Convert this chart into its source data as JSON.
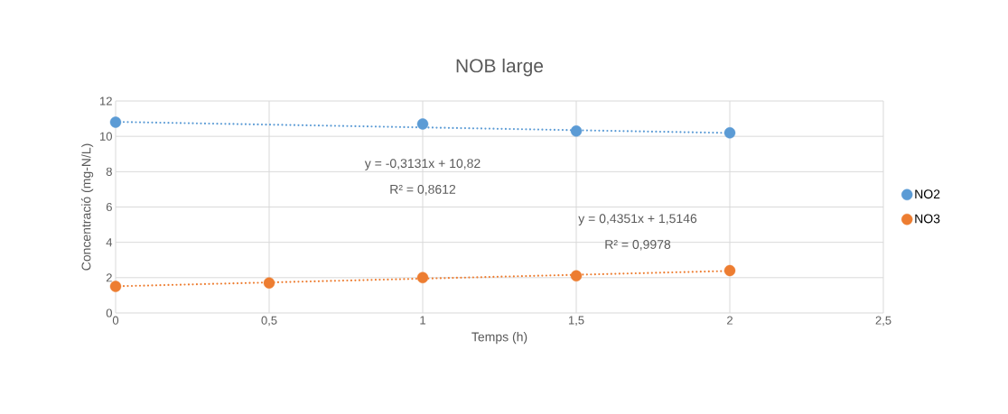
{
  "chart_data": {
    "type": "scatter",
    "title": "NOB large",
    "xlabel": "Temps (h)",
    "ylabel": "Concentració (mg-N/L)",
    "xlim": [
      0,
      2.5
    ],
    "xticks": [
      0,
      {
        "value": 0.5,
        "label": "0,5"
      },
      1,
      {
        "value": 1.5,
        "label": "1,5"
      },
      2,
      {
        "value": 2.5,
        "label": "2,5"
      }
    ],
    "ylim": [
      0,
      12
    ],
    "yticks": [
      0,
      2,
      4,
      6,
      8,
      10,
      12
    ],
    "grid": true,
    "legend": "right",
    "marker": "circle",
    "series": [
      {
        "name": "NO2",
        "color": "#5b9bd5",
        "x": [
          0,
          1,
          1.5,
          2
        ],
        "values": [
          10.8,
          10.7,
          10.3,
          10.2
        ]
      },
      {
        "name": "NO3",
        "color": "#ed7d31",
        "x": [
          0,
          0.5,
          1,
          1.5,
          2
        ],
        "values": [
          1.5,
          1.7,
          2.0,
          2.1,
          2.4
        ]
      },
      {
        "type": "line",
        "color": "#5b9bd5",
        "line_style": "dotted",
        "marker": "none",
        "x": [
          0,
          2
        ],
        "values": [
          10.82,
          10.19
        ]
      },
      {
        "type": "line",
        "color": "#ed7d31",
        "line_style": "dotted",
        "marker": "none",
        "x": [
          0,
          2
        ],
        "values": [
          1.51,
          2.38
        ]
      }
    ],
    "annotations": [
      "y = -0,3131x + 10,82",
      "R² = 0,8612",
      "y = 0,4351x + 1,5146",
      "R² = 0,9978"
    ]
  }
}
